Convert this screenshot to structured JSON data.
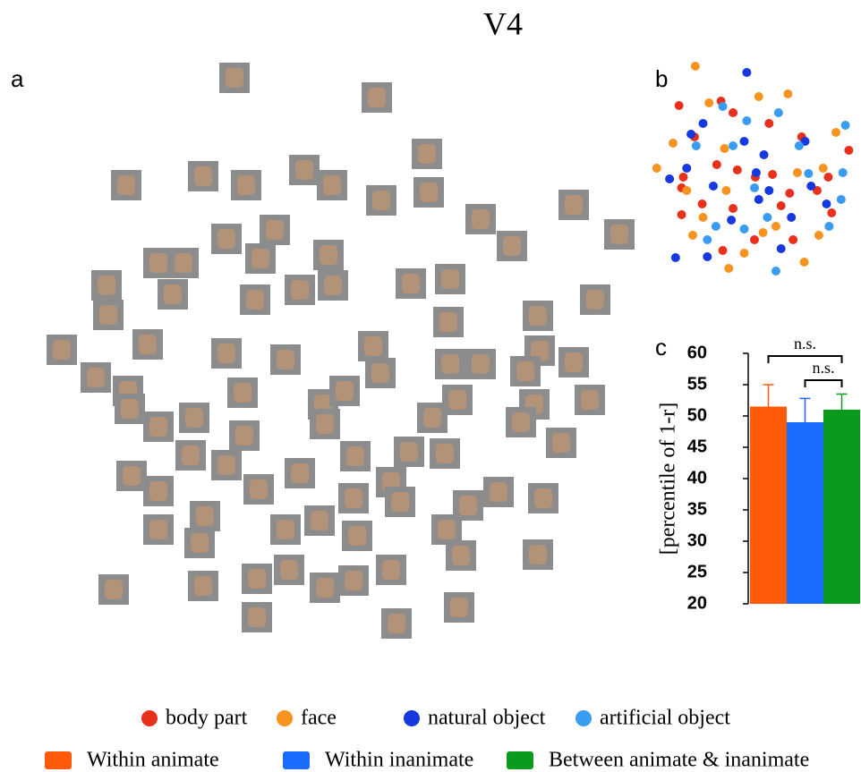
{
  "title": "V4",
  "panels": [
    "a",
    "b",
    "c"
  ],
  "chart_data": [
    {
      "type": "scatter",
      "series": [
        {
          "name": "body part",
          "color": "#e8301c",
          "x": [
            32,
            81,
            95,
            137,
            230,
            100,
            37,
            35,
            141,
            175,
            76,
            210,
            95,
            151,
            35,
            59,
            83,
            121,
            161,
            193,
            206,
            120,
            50,
            165
          ],
          "y": [
            190,
            195,
            182,
            170,
            140,
            118,
            110,
            98,
            113,
            155,
            124,
            70,
            75,
            78,
            68,
            80,
            28,
            110,
            92,
            95,
            110,
            40,
            155,
            40
          ]
        },
        {
          "name": "face",
          "color": "#f7931e",
          "x": [
            51,
            159,
            67,
            25,
            6,
            85,
            170,
            41,
            200,
            48,
            130,
            108,
            178,
            195,
            90,
            60,
            145,
            125,
            215,
            87
          ],
          "y": [
            234,
            203,
            193,
            148,
            120,
            142,
            115,
            95,
            120,
            45,
            48,
            25,
            15,
            45,
            8,
            65,
            55,
            200,
            160,
            95
          ]
        },
        {
          "name": "natural object",
          "color": "#1538e0",
          "x": [
            111,
            46,
            108,
            131,
            41,
            72,
            122,
            21,
            125,
            93,
            163,
            186,
            204,
            28,
            65,
            151,
            179,
            60,
            137
          ],
          "y": [
            227,
            158,
            150,
            135,
            120,
            100,
            115,
            108,
            85,
            62,
            65,
            100,
            80,
            20,
            21,
            30,
            150,
            170,
            95
          ]
        },
        {
          "name": "artificial object",
          "color": "#3a9cf0",
          "x": [
            83,
            111,
            148,
            226,
            172,
            183,
            223,
            120,
            75,
            65,
            108,
            135,
            207,
            145,
            221,
            52,
            95
          ],
          "y": [
            189,
            173,
            182,
            168,
            145,
            114,
            115,
            98,
            55,
            40,
            52,
            65,
            55,
            5,
            85,
            145,
            145
          ]
        }
      ],
      "xlim": [
        0,
        240
      ],
      "ylim": [
        0,
        240
      ]
    },
    {
      "type": "bar",
      "y_label": "[percentile of 1-r]",
      "categories": [
        "Within animate",
        "Within inanimate",
        "Between animate & inanimate"
      ],
      "values": [
        51.5,
        49,
        51
      ],
      "errors": [
        3.5,
        3.8,
        2.5
      ],
      "colors": [
        "#ff5a0a",
        "#1a6cff",
        "#0a9a1e"
      ],
      "ylim": [
        20,
        60
      ],
      "yticks": [
        20,
        25,
        30,
        35,
        40,
        45,
        50,
        55,
        60
      ],
      "annotations": [
        "n.s.",
        "n.s."
      ]
    }
  ]
}
